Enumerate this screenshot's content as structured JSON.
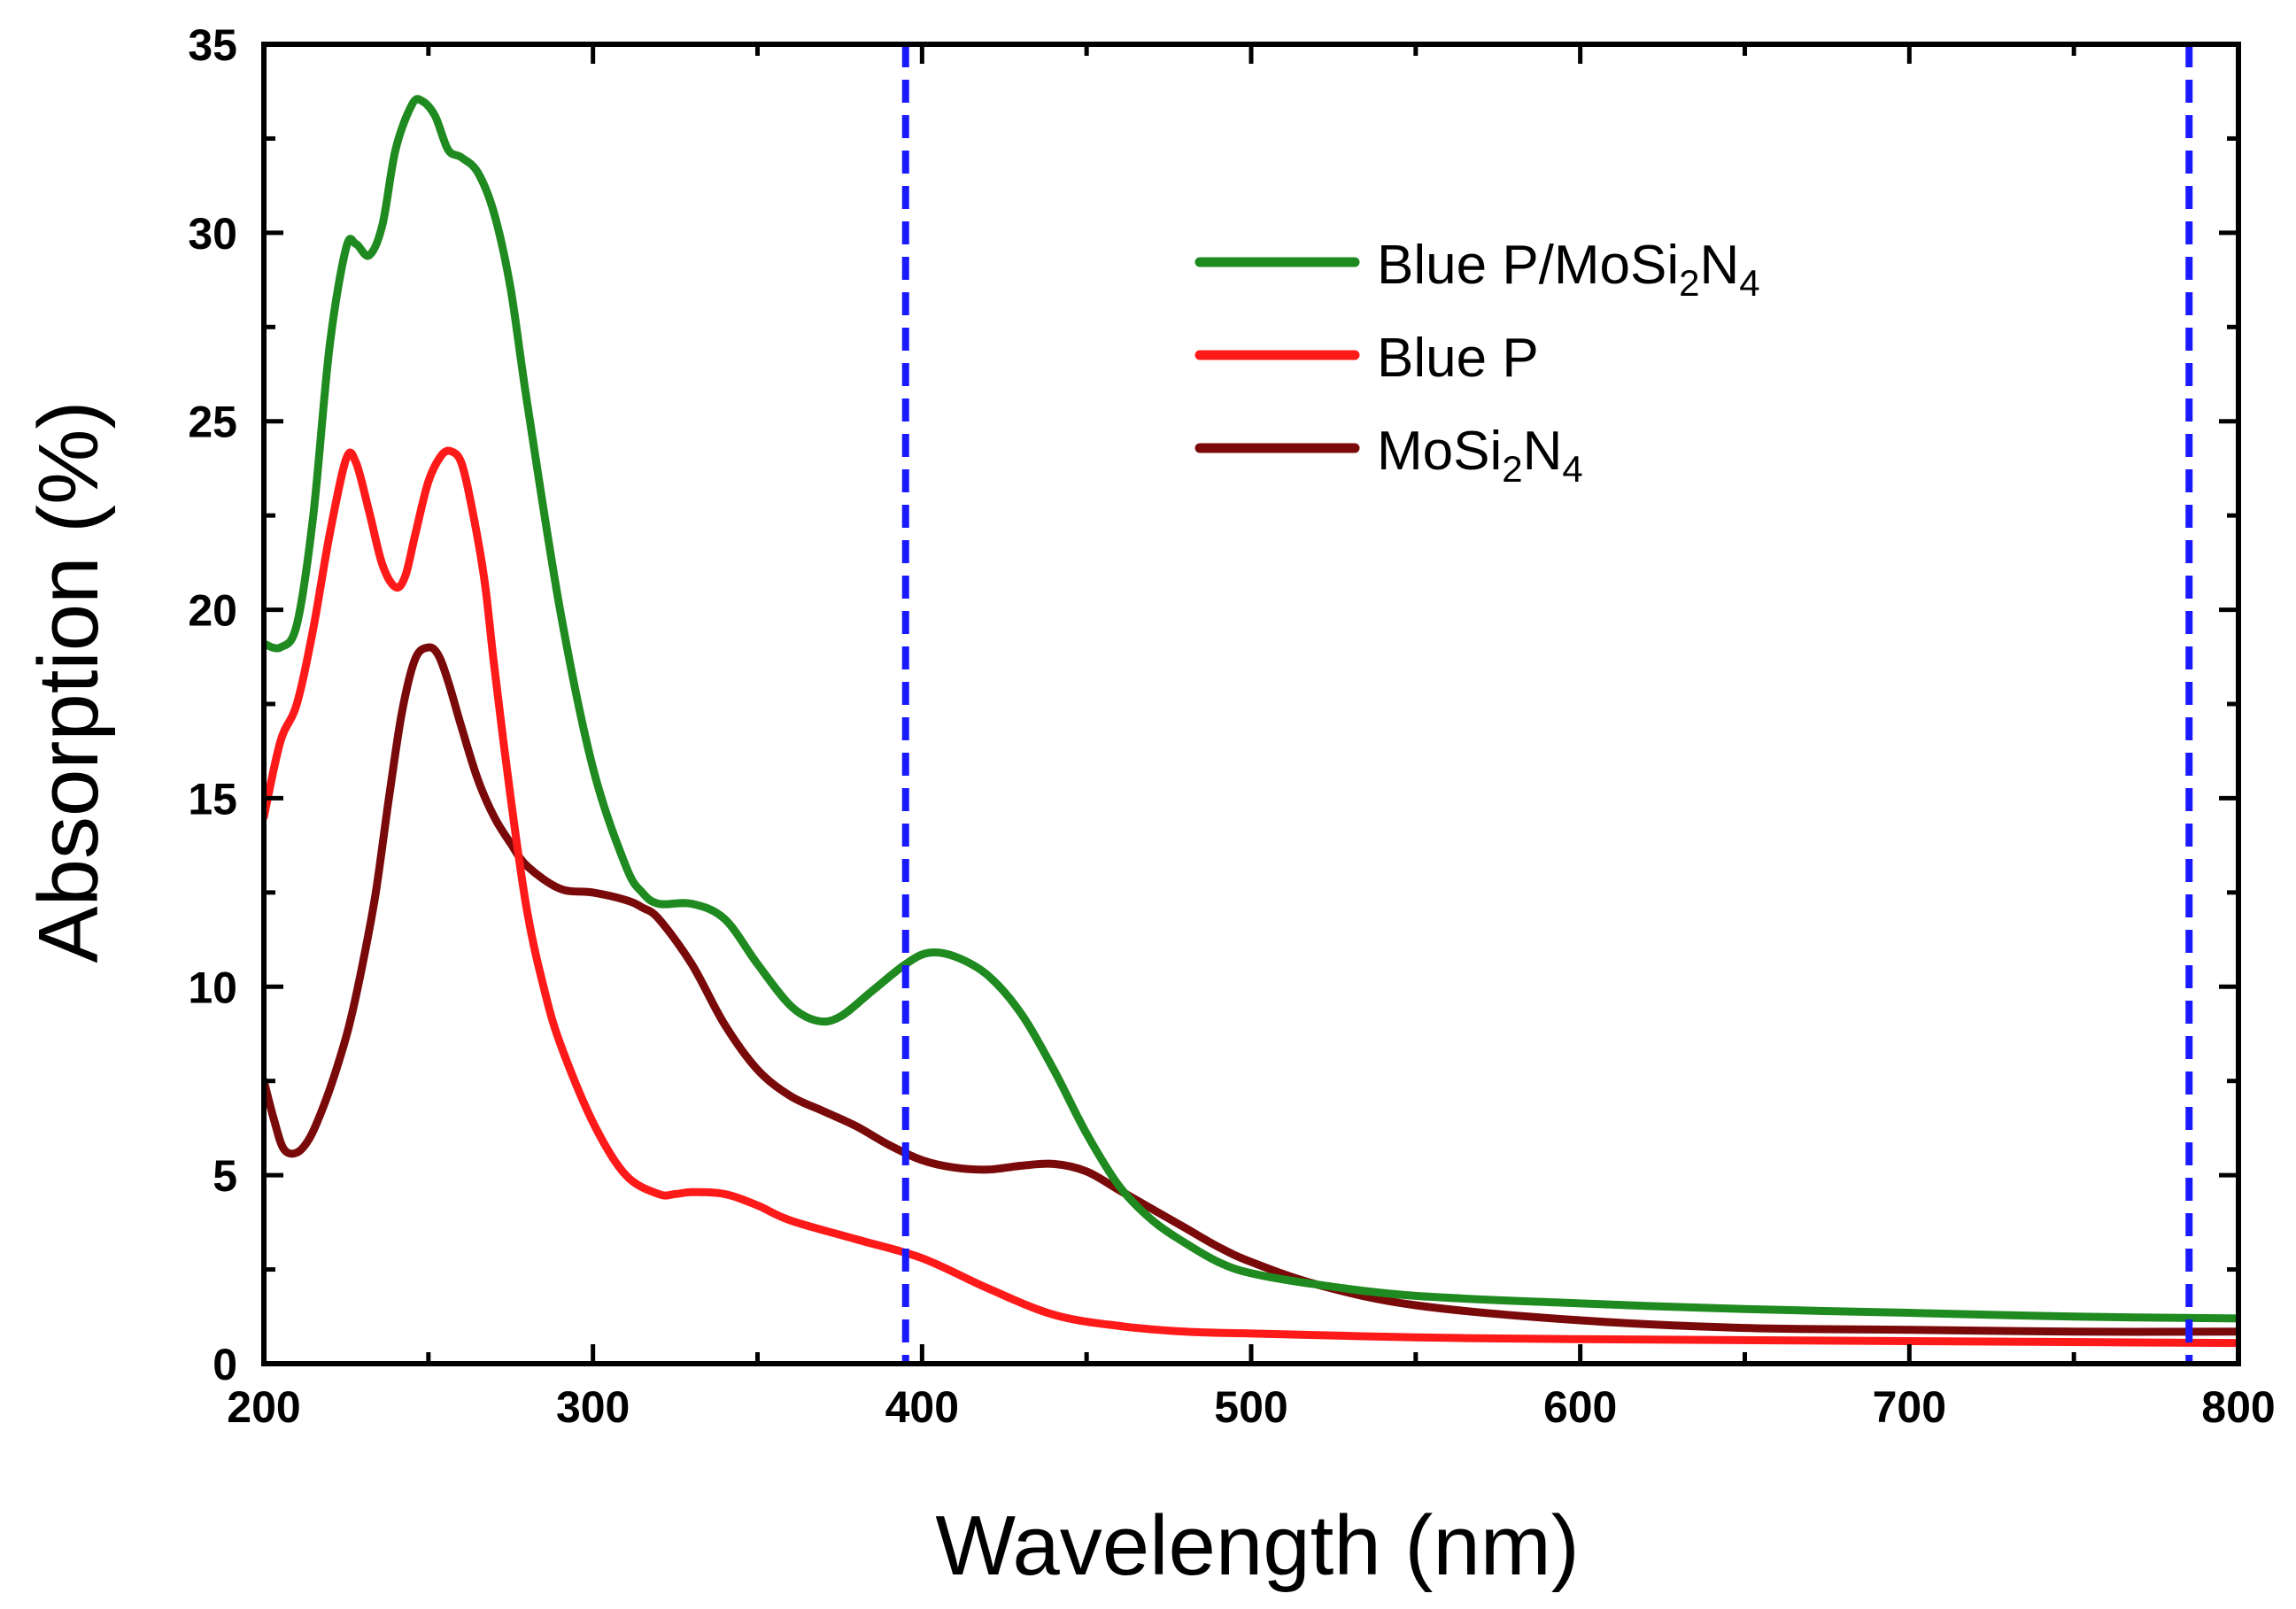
{
  "chart_data": {
    "type": "line",
    "title": "",
    "xlabel": "Wavelength (nm)",
    "ylabel": "Absorption (%)",
    "xlim": [
      200,
      800
    ],
    "ylim": [
      0,
      35
    ],
    "x_ticks": [
      "200",
      "300",
      "400",
      "500",
      "600",
      "700",
      "800"
    ],
    "y_ticks": [
      "0",
      "5",
      "10",
      "15",
      "20",
      "25",
      "30",
      "35"
    ],
    "grid": false,
    "legend_position": "top-right",
    "vlines": [
      {
        "x": 395,
        "style": "dashed",
        "color": "#1a1aff"
      },
      {
        "x": 785,
        "style": "dashed",
        "color": "#1a1aff"
      }
    ],
    "series": [
      {
        "name": "Blue P/MoSi2N4",
        "label_main": "Blue P/MoSi",
        "label_sub1": "2",
        "label_mid": "N",
        "label_sub2": "4",
        "color": "#1f8a1f",
        "x": [
          200,
          205,
          210,
          215,
          220,
          225,
          228,
          232,
          236,
          240,
          245,
          248,
          252,
          256,
          260,
          265,
          270,
          275,
          280,
          290,
          300,
          310,
          315,
          320,
          330,
          340,
          350,
          360,
          368,
          375,
          385,
          395,
          402,
          410,
          420,
          430,
          440,
          450,
          460,
          470,
          480,
          490,
          500,
          520,
          550,
          600,
          650,
          700,
          750,
          800
        ],
        "y": [
          19.1,
          19.0,
          19.6,
          22.5,
          27.0,
          29.6,
          29.7,
          29.4,
          30.2,
          32.2,
          33.4,
          33.5,
          33.1,
          32.2,
          32.0,
          31.6,
          30.5,
          28.5,
          25.5,
          20.0,
          15.8,
          13.2,
          12.5,
          12.2,
          12.2,
          11.8,
          10.6,
          9.5,
          9.1,
          9.2,
          9.9,
          10.6,
          10.9,
          10.8,
          10.3,
          9.3,
          7.8,
          6.1,
          4.7,
          3.8,
          3.2,
          2.7,
          2.4,
          2.1,
          1.8,
          1.6,
          1.45,
          1.35,
          1.25,
          1.2
        ]
      },
      {
        "name": "Blue P",
        "label_main": "Blue P",
        "label_sub1": "",
        "label_mid": "",
        "label_sub2": "",
        "color": "#ff1a1a",
        "x": [
          200,
          205,
          210,
          215,
          220,
          225,
          228,
          232,
          236,
          240,
          243,
          246,
          250,
          254,
          257,
          260,
          263,
          267,
          270,
          275,
          280,
          285,
          290,
          300,
          310,
          320,
          325,
          330,
          340,
          350,
          360,
          380,
          400,
          420,
          440,
          460,
          480,
          500,
          550,
          600,
          700,
          800
        ],
        "y": [
          14.5,
          16.5,
          17.5,
          19.5,
          22.0,
          24.0,
          23.9,
          22.6,
          21.2,
          20.6,
          20.9,
          22.0,
          23.4,
          24.1,
          24.2,
          23.9,
          22.8,
          20.8,
          18.5,
          15.0,
          12.0,
          10.0,
          8.5,
          6.4,
          5.0,
          4.5,
          4.5,
          4.55,
          4.5,
          4.2,
          3.8,
          3.3,
          2.8,
          2.0,
          1.3,
          1.0,
          0.85,
          0.8,
          0.7,
          0.65,
          0.6,
          0.55
        ]
      },
      {
        "name": "MoSi2N4",
        "label_main": "MoSi",
        "label_sub1": "2",
        "label_mid": "N",
        "label_sub2": "4",
        "color": "#7a0a0a",
        "x": [
          200,
          203,
          206,
          210,
          214,
          218,
          222,
          226,
          230,
          234,
          238,
          242,
          246,
          250,
          253,
          256,
          260,
          265,
          270,
          275,
          280,
          290,
          300,
          310,
          315,
          320,
          330,
          340,
          350,
          360,
          370,
          380,
          390,
          400,
          410,
          420,
          430,
          440,
          450,
          460,
          470,
          480,
          490,
          500,
          520,
          550,
          600,
          650,
          700,
          750,
          800
        ],
        "y": [
          7.5,
          6.5,
          5.7,
          5.6,
          6.0,
          6.8,
          7.8,
          9.0,
          10.6,
          12.5,
          15.0,
          17.3,
          18.7,
          19.0,
          18.8,
          18.1,
          16.9,
          15.5,
          14.5,
          13.8,
          13.2,
          12.6,
          12.5,
          12.3,
          12.1,
          11.8,
          10.6,
          9.0,
          7.8,
          7.1,
          6.7,
          6.3,
          5.8,
          5.4,
          5.2,
          5.15,
          5.25,
          5.3,
          5.1,
          4.6,
          4.1,
          3.6,
          3.1,
          2.7,
          2.1,
          1.55,
          1.15,
          0.95,
          0.9,
          0.85,
          0.85
        ]
      }
    ]
  }
}
